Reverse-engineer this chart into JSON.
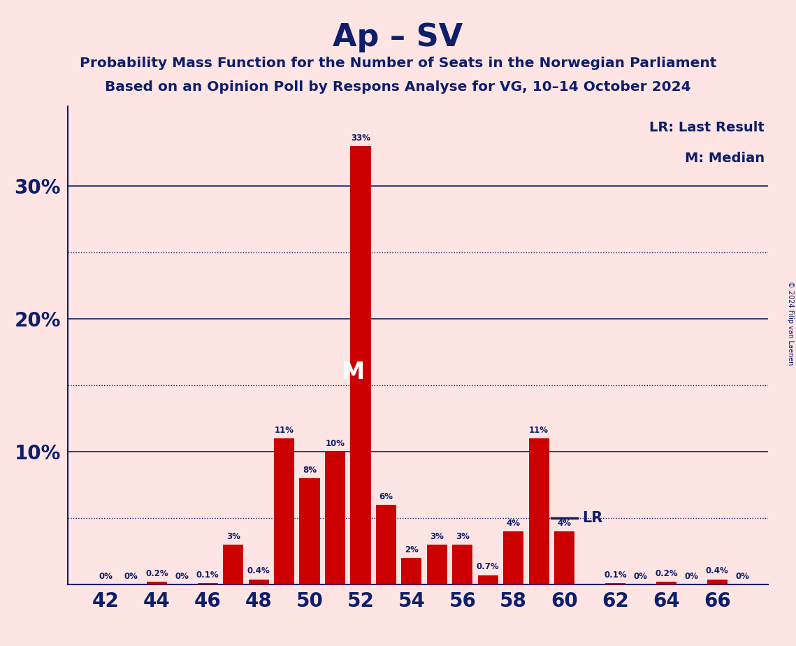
{
  "title": "Ap – SV",
  "subtitle1": "Probability Mass Function for the Number of Seats in the Norwegian Parliament",
  "subtitle2": "Based on an Opinion Poll by Respons Analyse for VG, 10–14 October 2024",
  "copyright": "© 2024 Filip van Laenen",
  "bar_color": "#CC0000",
  "background_color": "#FFE4E4",
  "title_color": "#0D1E6B",
  "seats": [
    42,
    43,
    44,
    45,
    46,
    47,
    48,
    49,
    50,
    51,
    52,
    53,
    54,
    55,
    56,
    57,
    58,
    59,
    60,
    61,
    62,
    63,
    64,
    65,
    66,
    67
  ],
  "values": [
    0.0,
    0.0,
    0.2,
    0.0,
    0.1,
    3.0,
    0.4,
    11.0,
    8.0,
    10.0,
    33.0,
    6.0,
    2.0,
    3.0,
    3.0,
    0.7,
    4.0,
    11.0,
    4.0,
    0.0,
    0.1,
    0.0,
    0.2,
    0.0,
    0.4,
    0.0
  ],
  "labels": [
    "0%",
    "0%",
    "0.2%",
    "0%",
    "0.1%",
    "3%",
    "0.4%",
    "11%",
    "8%",
    "10%",
    "33%",
    "6%",
    "2%",
    "3%",
    "3%",
    "0.7%",
    "4%",
    "11%",
    "4%",
    "",
    "0.1%",
    "0%",
    "0.2%",
    "0%",
    "0.4%",
    "0%"
  ],
  "median_seat": 52,
  "lr_seat": 60,
  "lr_value": 5.0,
  "xticks": [
    42,
    44,
    46,
    48,
    50,
    52,
    54,
    56,
    58,
    60,
    62,
    64,
    66
  ],
  "yticks": [
    10,
    20,
    30
  ],
  "yticks_dotted": [
    5,
    15,
    25
  ],
  "ylim": [
    0,
    36
  ],
  "xlim_left": 40.5,
  "xlim_right": 68.0,
  "legend_lr": "LR: Last Result",
  "legend_m": "M: Median",
  "bar_width": 0.8
}
